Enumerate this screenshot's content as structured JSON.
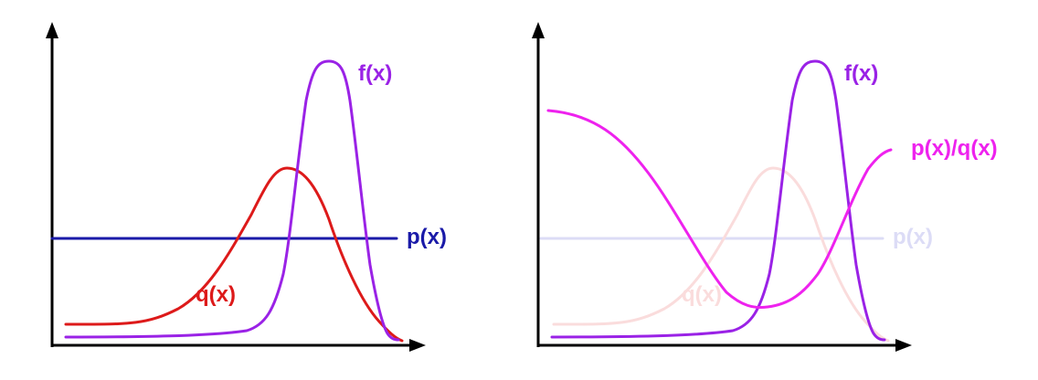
{
  "colors": {
    "axis": "#000000",
    "p": "#1a1aa8",
    "q": "#dd1a1a",
    "f": "#9a22e6",
    "ratio": "#ee22ee",
    "p_faded": "#dcdcf6",
    "q_faded": "#fadcdc"
  },
  "left_panel": {
    "labels": {
      "f": "f(x)",
      "p": "p(x)",
      "q": "q(x)"
    }
  },
  "right_panel": {
    "labels": {
      "f": "f(x)",
      "p": "p(x)",
      "q": "q(x)",
      "ratio": "p(x)/q(x)"
    }
  }
}
